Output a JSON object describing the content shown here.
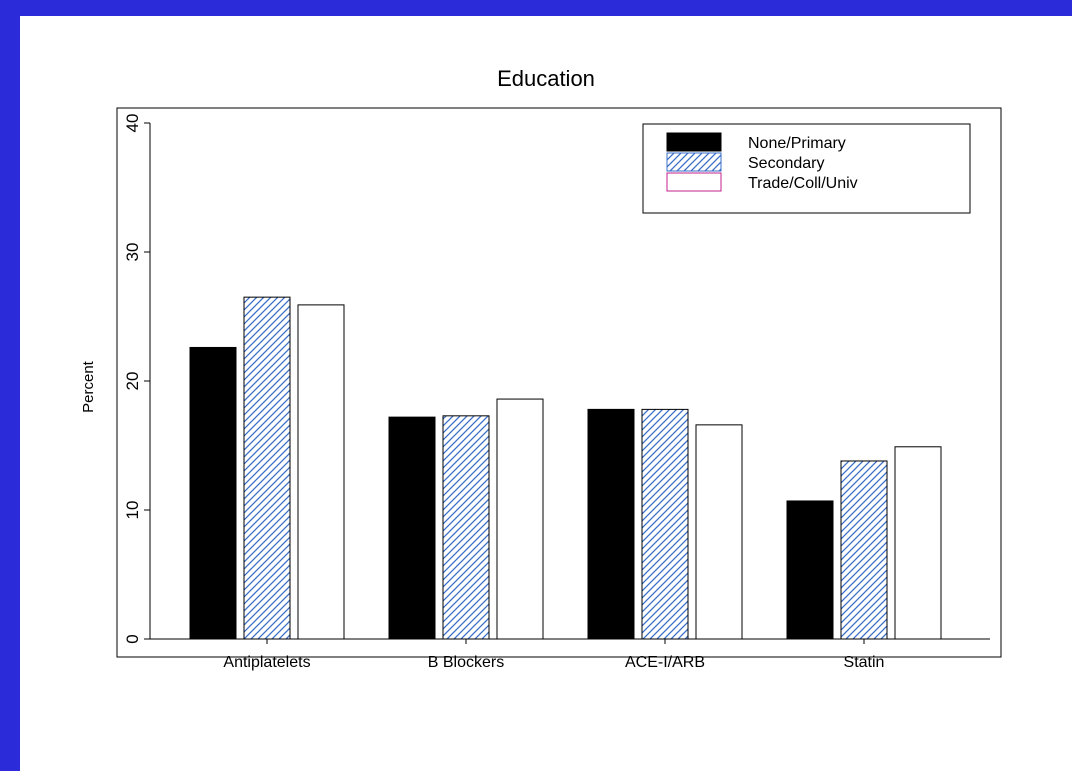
{
  "chart_data": {
    "type": "bar",
    "title": "Education",
    "xlabel": "",
    "ylabel": "Percent",
    "ylim": [
      0,
      40
    ],
    "yticks": [
      0,
      10,
      20,
      30,
      40
    ],
    "grid": false,
    "legend_position": "top-right",
    "categories": [
      "Antiplatelets",
      "B Blockers",
      "ACE-I/ARB",
      "Statin"
    ],
    "series": [
      {
        "name": "None/Primary",
        "values": [
          22.6,
          17.2,
          17.8,
          10.7
        ],
        "color": "#000000",
        "pattern": "solid"
      },
      {
        "name": "Secondary",
        "values": [
          26.5,
          17.3,
          17.8,
          13.8
        ],
        "color": "#3a6fc8",
        "pattern": "hatch"
      },
      {
        "name": "Trade/Coll/Univ",
        "values": [
          25.9,
          18.6,
          16.6,
          14.9
        ],
        "color": "#ffffff",
        "pattern": "none",
        "legend_border": "#c0208a"
      }
    ]
  }
}
